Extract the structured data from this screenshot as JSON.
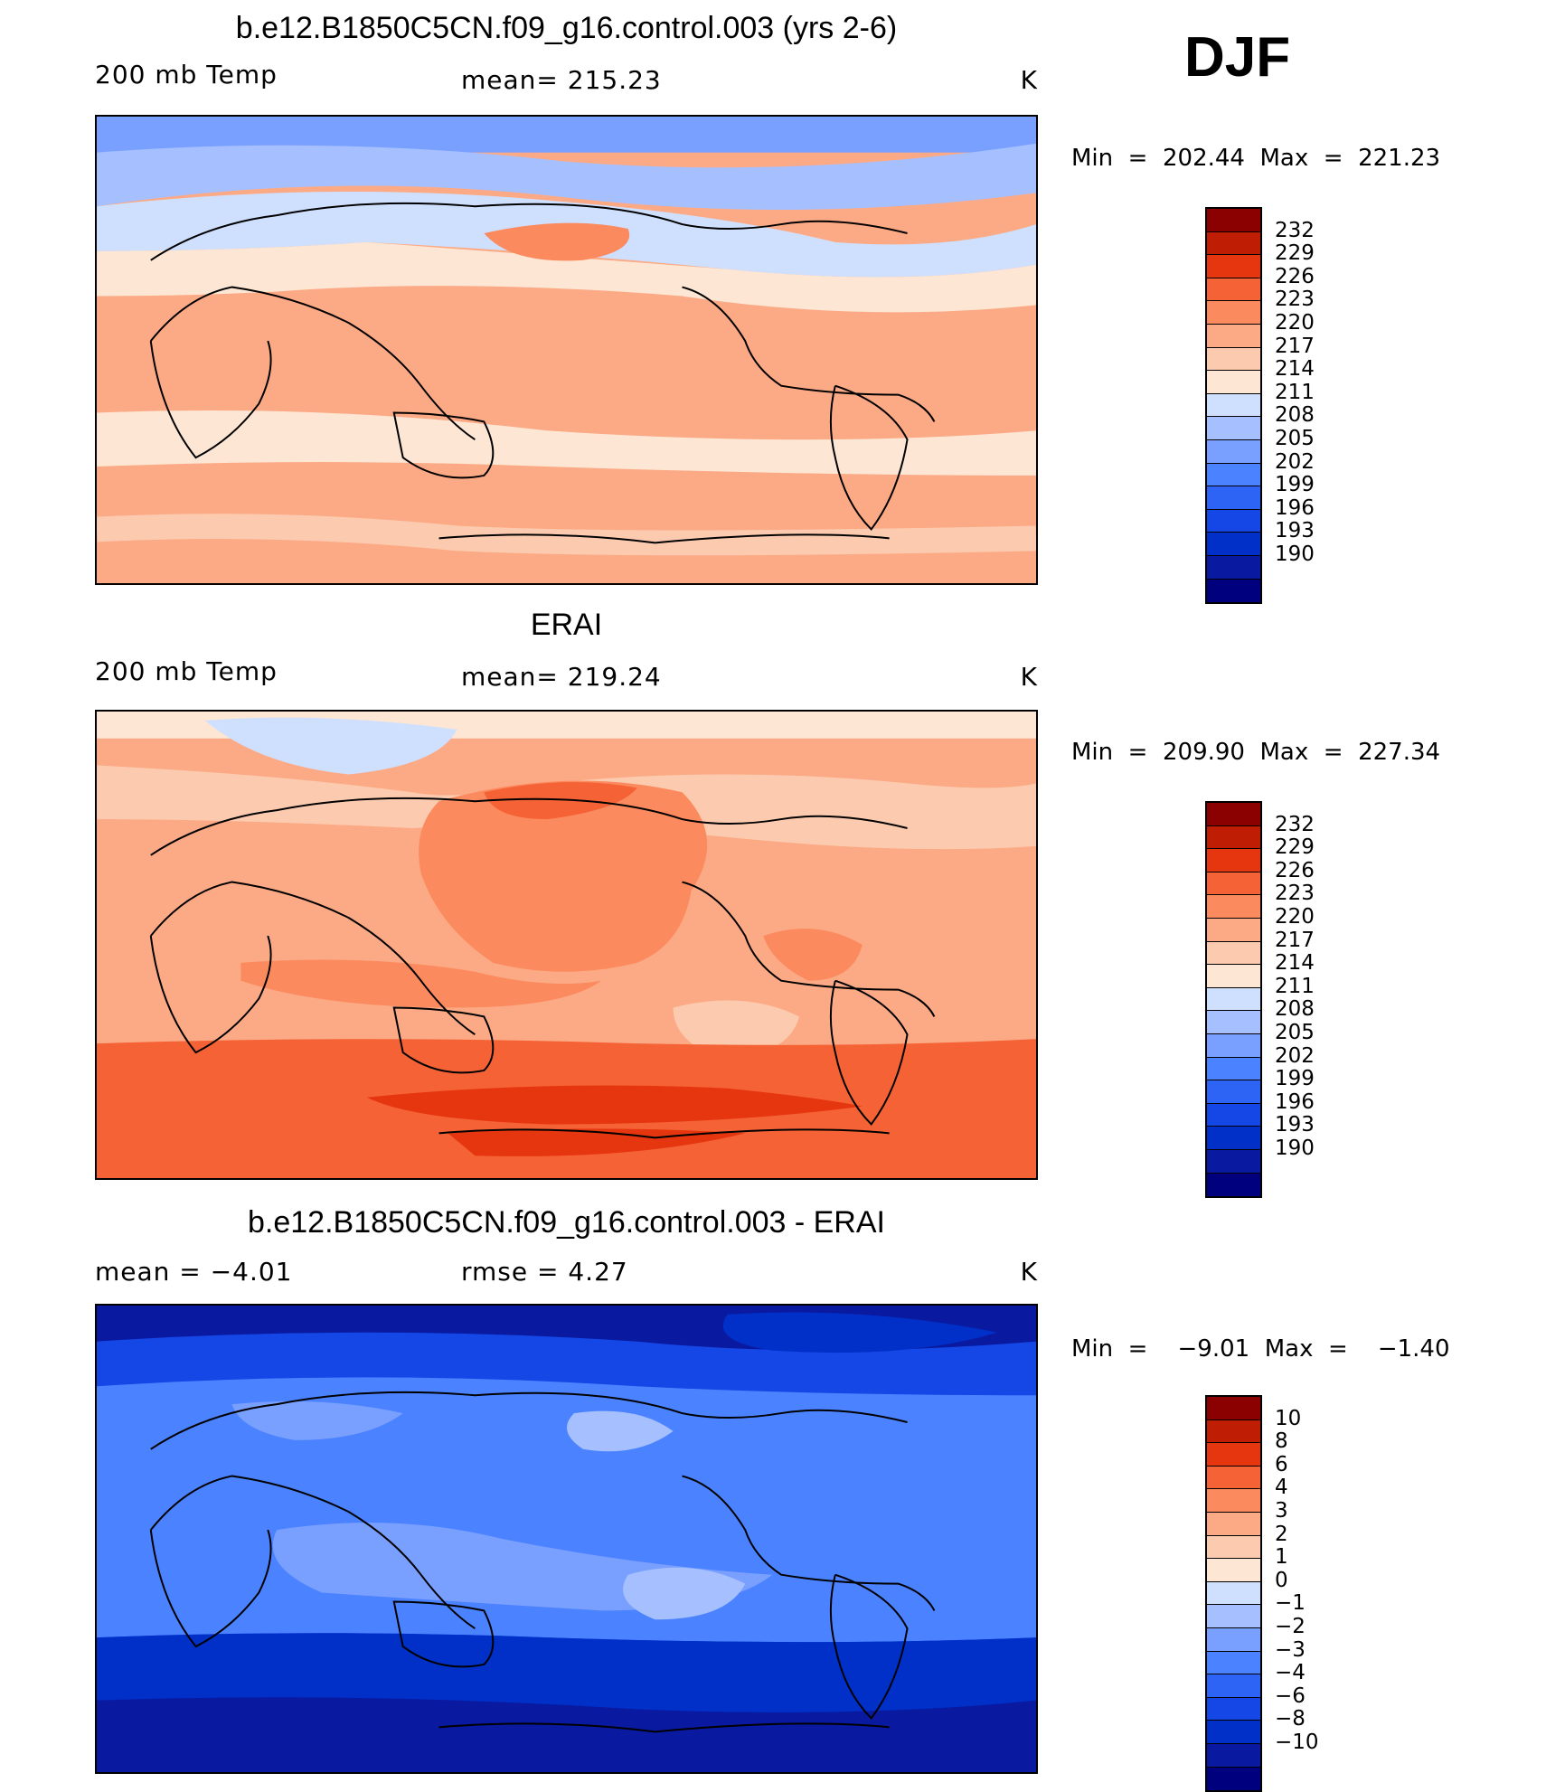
{
  "season": "DJF",
  "colors": {
    "scale": [
      "#00007f",
      "#0a1aa0",
      "#0030c8",
      "#1447e6",
      "#2d64f5",
      "#4b82ff",
      "#7aa0ff",
      "#a6c0ff",
      "#cfe0ff",
      "#fde6d3",
      "#fccbaf",
      "#fcaa85",
      "#fb8a5f",
      "#f56235",
      "#e5360f",
      "#bf1e04",
      "#8b0000"
    ]
  },
  "panels": [
    {
      "title": "b.e12.B1850C5CN.f09_g16.control.003 (yrs 2-6)",
      "left_label": "200 mb Temp",
      "center_label": "mean=  215.23",
      "unit": "K",
      "minmax": "Min  =  202.44  Max  =  221.23",
      "colorbar_labels": [
        "232",
        "229",
        "226",
        "223",
        "220",
        "217",
        "214",
        "211",
        "208",
        "205",
        "202",
        "199",
        "196",
        "193",
        "190"
      ]
    },
    {
      "title": "ERAI",
      "left_label": "200 mb Temp",
      "center_label": "mean=  219.24",
      "unit": "K",
      "minmax": "Min  =  209.90  Max  =  227.34",
      "colorbar_labels": [
        "232",
        "229",
        "226",
        "223",
        "220",
        "217",
        "214",
        "211",
        "208",
        "205",
        "202",
        "199",
        "196",
        "193",
        "190"
      ]
    },
    {
      "title": "b.e12.B1850C5CN.f09_g16.control.003 - ERAI",
      "left_label": "mean  =    −4.01",
      "center_label": "rmse  =     4.27",
      "unit": "K",
      "minmax": "Min  =    −9.01  Max  =    −1.40",
      "colorbar_labels": [
        "10",
        "8",
        "6",
        "4",
        "3",
        "2",
        "1",
        "0",
        "−1",
        "−2",
        "−3",
        "−4",
        "−6",
        "−8",
        "−10"
      ]
    }
  ]
}
